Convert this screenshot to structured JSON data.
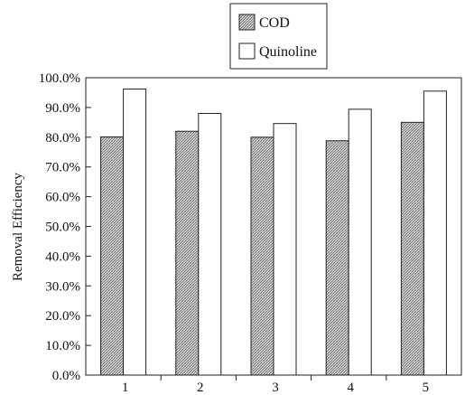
{
  "chart_data": {
    "type": "bar",
    "categories": [
      "1",
      "2",
      "3",
      "4",
      "5"
    ],
    "series": [
      {
        "name": "COD",
        "values": [
          80.1,
          82.0,
          80.0,
          78.8,
          85.0
        ],
        "fill": "hatched-grey"
      },
      {
        "name": "Quinoline",
        "values": [
          96.2,
          88.0,
          84.6,
          89.4,
          95.5
        ],
        "fill": "white"
      }
    ],
    "ylabel": "Removal Efficiency",
    "xlabel": "",
    "ylim": [
      0,
      100
    ],
    "yticks": [
      "0.0%",
      "10.0%",
      "20.0%",
      "30.0%",
      "40.0%",
      "50.0%",
      "60.0%",
      "70.0%",
      "80.0%",
      "90.0%",
      "100.0%"
    ],
    "grid": false,
    "legend_position": "top-center"
  },
  "colors": {
    "cod_base": "#c4c4c4",
    "cod_hatch": "#7a7a7a",
    "outline": "#222222"
  }
}
